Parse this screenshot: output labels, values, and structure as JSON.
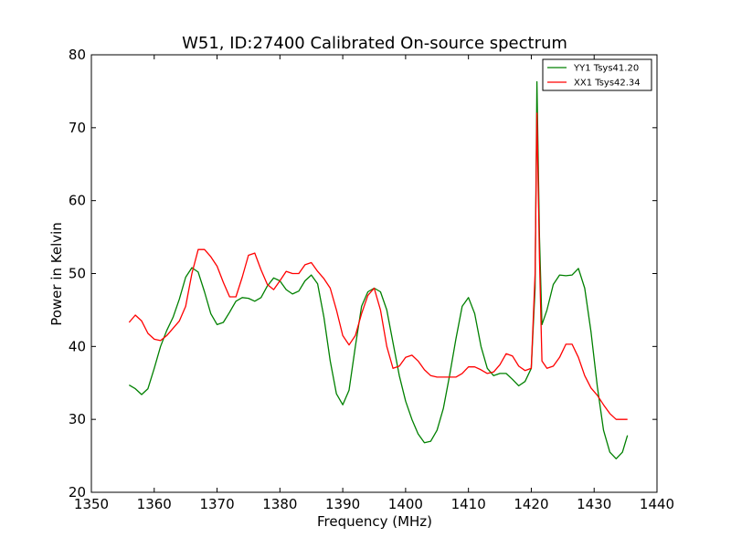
{
  "chart_data": {
    "type": "line",
    "title": "W51, ID:27400 Calibrated On-source spectrum",
    "xlabel": "Frequency (MHz)",
    "ylabel": "Power in Kelvin",
    "xlim": [
      1350,
      1440
    ],
    "ylim": [
      20,
      80
    ],
    "xticks": [
      1350,
      1360,
      1370,
      1380,
      1390,
      1400,
      1410,
      1420,
      1430,
      1440
    ],
    "yticks": [
      20,
      30,
      40,
      50,
      60,
      70,
      80
    ],
    "grid": false,
    "legend_position": "top-right",
    "series": [
      {
        "name": "YY1 Tsys41.20",
        "color": "#008000",
        "points": [
          [
            1356,
            34.7
          ],
          [
            1357,
            34.2
          ],
          [
            1358,
            33.4
          ],
          [
            1359,
            34.2
          ],
          [
            1360,
            37
          ],
          [
            1361,
            40
          ],
          [
            1362,
            42.2
          ],
          [
            1363,
            44
          ],
          [
            1364,
            46.5
          ],
          [
            1365,
            49.5
          ],
          [
            1366,
            50.8
          ],
          [
            1367,
            50.2
          ],
          [
            1368,
            47.5
          ],
          [
            1369,
            44.5
          ],
          [
            1370,
            43
          ],
          [
            1371,
            43.3
          ],
          [
            1372,
            44.7
          ],
          [
            1373,
            46.2
          ],
          [
            1374,
            46.7
          ],
          [
            1375,
            46.6
          ],
          [
            1376,
            46.2
          ],
          [
            1377,
            46.7
          ],
          [
            1378,
            48.3
          ],
          [
            1379,
            49.4
          ],
          [
            1380,
            49
          ],
          [
            1381,
            47.8
          ],
          [
            1382,
            47.2
          ],
          [
            1383,
            47.6
          ],
          [
            1384,
            49
          ],
          [
            1385,
            49.8
          ],
          [
            1386,
            48.6
          ],
          [
            1387,
            44
          ],
          [
            1388,
            38
          ],
          [
            1389,
            33.5
          ],
          [
            1390,
            32
          ],
          [
            1391,
            34
          ],
          [
            1392,
            40
          ],
          [
            1393,
            45.5
          ],
          [
            1394,
            47.5
          ],
          [
            1395,
            48
          ],
          [
            1396,
            47.5
          ],
          [
            1397,
            45
          ],
          [
            1398,
            40.5
          ],
          [
            1399,
            36
          ],
          [
            1400,
            32.5
          ],
          [
            1401,
            30
          ],
          [
            1402,
            28
          ],
          [
            1403,
            26.8
          ],
          [
            1404,
            27
          ],
          [
            1405,
            28.5
          ],
          [
            1406,
            31.5
          ],
          [
            1407,
            36
          ],
          [
            1408,
            41
          ],
          [
            1409,
            45.5
          ],
          [
            1410,
            46.7
          ],
          [
            1411,
            44.5
          ],
          [
            1412,
            40
          ],
          [
            1413,
            37
          ],
          [
            1414,
            36
          ],
          [
            1415,
            36.3
          ],
          [
            1416,
            36.3
          ],
          [
            1417,
            35.5
          ],
          [
            1418,
            34.6
          ],
          [
            1419,
            35.2
          ],
          [
            1420,
            37
          ],
          [
            1420.6,
            48
          ],
          [
            1420.9,
            76.3
          ],
          [
            1421.3,
            55
          ],
          [
            1421.7,
            43
          ],
          [
            1422.5,
            45
          ],
          [
            1423.5,
            48.5
          ],
          [
            1424.5,
            49.8
          ],
          [
            1425.5,
            49.7
          ],
          [
            1426.5,
            49.8
          ],
          [
            1427.5,
            50.7
          ],
          [
            1428.5,
            48
          ],
          [
            1429.5,
            42
          ],
          [
            1430.5,
            34.5
          ],
          [
            1431.5,
            28.5
          ],
          [
            1432.5,
            25.5
          ],
          [
            1433.5,
            24.6
          ],
          [
            1434.5,
            25.5
          ],
          [
            1435.3,
            27.8
          ]
        ]
      },
      {
        "name": "XX1 Tsys42.34",
        "color": "#ff0000",
        "points": [
          [
            1356,
            43.3
          ],
          [
            1357,
            44.3
          ],
          [
            1358,
            43.5
          ],
          [
            1359,
            41.8
          ],
          [
            1360,
            41
          ],
          [
            1361,
            40.8
          ],
          [
            1362,
            41.5
          ],
          [
            1363,
            42.5
          ],
          [
            1364,
            43.5
          ],
          [
            1365,
            45.5
          ],
          [
            1366,
            50
          ],
          [
            1367,
            53.3
          ],
          [
            1368,
            53.3
          ],
          [
            1369,
            52.3
          ],
          [
            1370,
            51
          ],
          [
            1371,
            48.8
          ],
          [
            1372,
            46.8
          ],
          [
            1373,
            46.8
          ],
          [
            1374,
            49.5
          ],
          [
            1375,
            52.5
          ],
          [
            1376,
            52.8
          ],
          [
            1377,
            50.5
          ],
          [
            1378,
            48.5
          ],
          [
            1379,
            47.8
          ],
          [
            1380,
            49
          ],
          [
            1381,
            50.3
          ],
          [
            1382,
            50
          ],
          [
            1383,
            50
          ],
          [
            1384,
            51.2
          ],
          [
            1385,
            51.5
          ],
          [
            1386,
            50.3
          ],
          [
            1387,
            49.3
          ],
          [
            1388,
            48
          ],
          [
            1389,
            45
          ],
          [
            1390,
            41.5
          ],
          [
            1391,
            40.2
          ],
          [
            1392,
            41.5
          ],
          [
            1393,
            44.5
          ],
          [
            1394,
            47
          ],
          [
            1395,
            48
          ],
          [
            1396,
            45
          ],
          [
            1397,
            40
          ],
          [
            1398,
            37
          ],
          [
            1399,
            37.3
          ],
          [
            1400,
            38.5
          ],
          [
            1401,
            38.8
          ],
          [
            1402,
            38
          ],
          [
            1403,
            36.8
          ],
          [
            1404,
            36
          ],
          [
            1405,
            35.8
          ],
          [
            1406,
            35.8
          ],
          [
            1407,
            35.8
          ],
          [
            1408,
            35.8
          ],
          [
            1409,
            36.3
          ],
          [
            1410,
            37.2
          ],
          [
            1411,
            37.2
          ],
          [
            1412,
            36.8
          ],
          [
            1413,
            36.3
          ],
          [
            1414,
            36.5
          ],
          [
            1415,
            37.5
          ],
          [
            1416,
            39
          ],
          [
            1417,
            38.7
          ],
          [
            1418,
            37.3
          ],
          [
            1419,
            36.7
          ],
          [
            1420,
            37
          ],
          [
            1420.6,
            50
          ],
          [
            1420.9,
            72
          ],
          [
            1421.3,
            52
          ],
          [
            1421.7,
            38
          ],
          [
            1422.5,
            37
          ],
          [
            1423.5,
            37.3
          ],
          [
            1424.5,
            38.5
          ],
          [
            1425.5,
            40.3
          ],
          [
            1426.5,
            40.3
          ],
          [
            1427.5,
            38.5
          ],
          [
            1428.5,
            36
          ],
          [
            1429.5,
            34.3
          ],
          [
            1430.5,
            33.3
          ],
          [
            1431.5,
            32
          ],
          [
            1432.5,
            30.8
          ],
          [
            1433.5,
            30
          ],
          [
            1434.5,
            30
          ],
          [
            1435.3,
            30
          ]
        ]
      }
    ]
  }
}
